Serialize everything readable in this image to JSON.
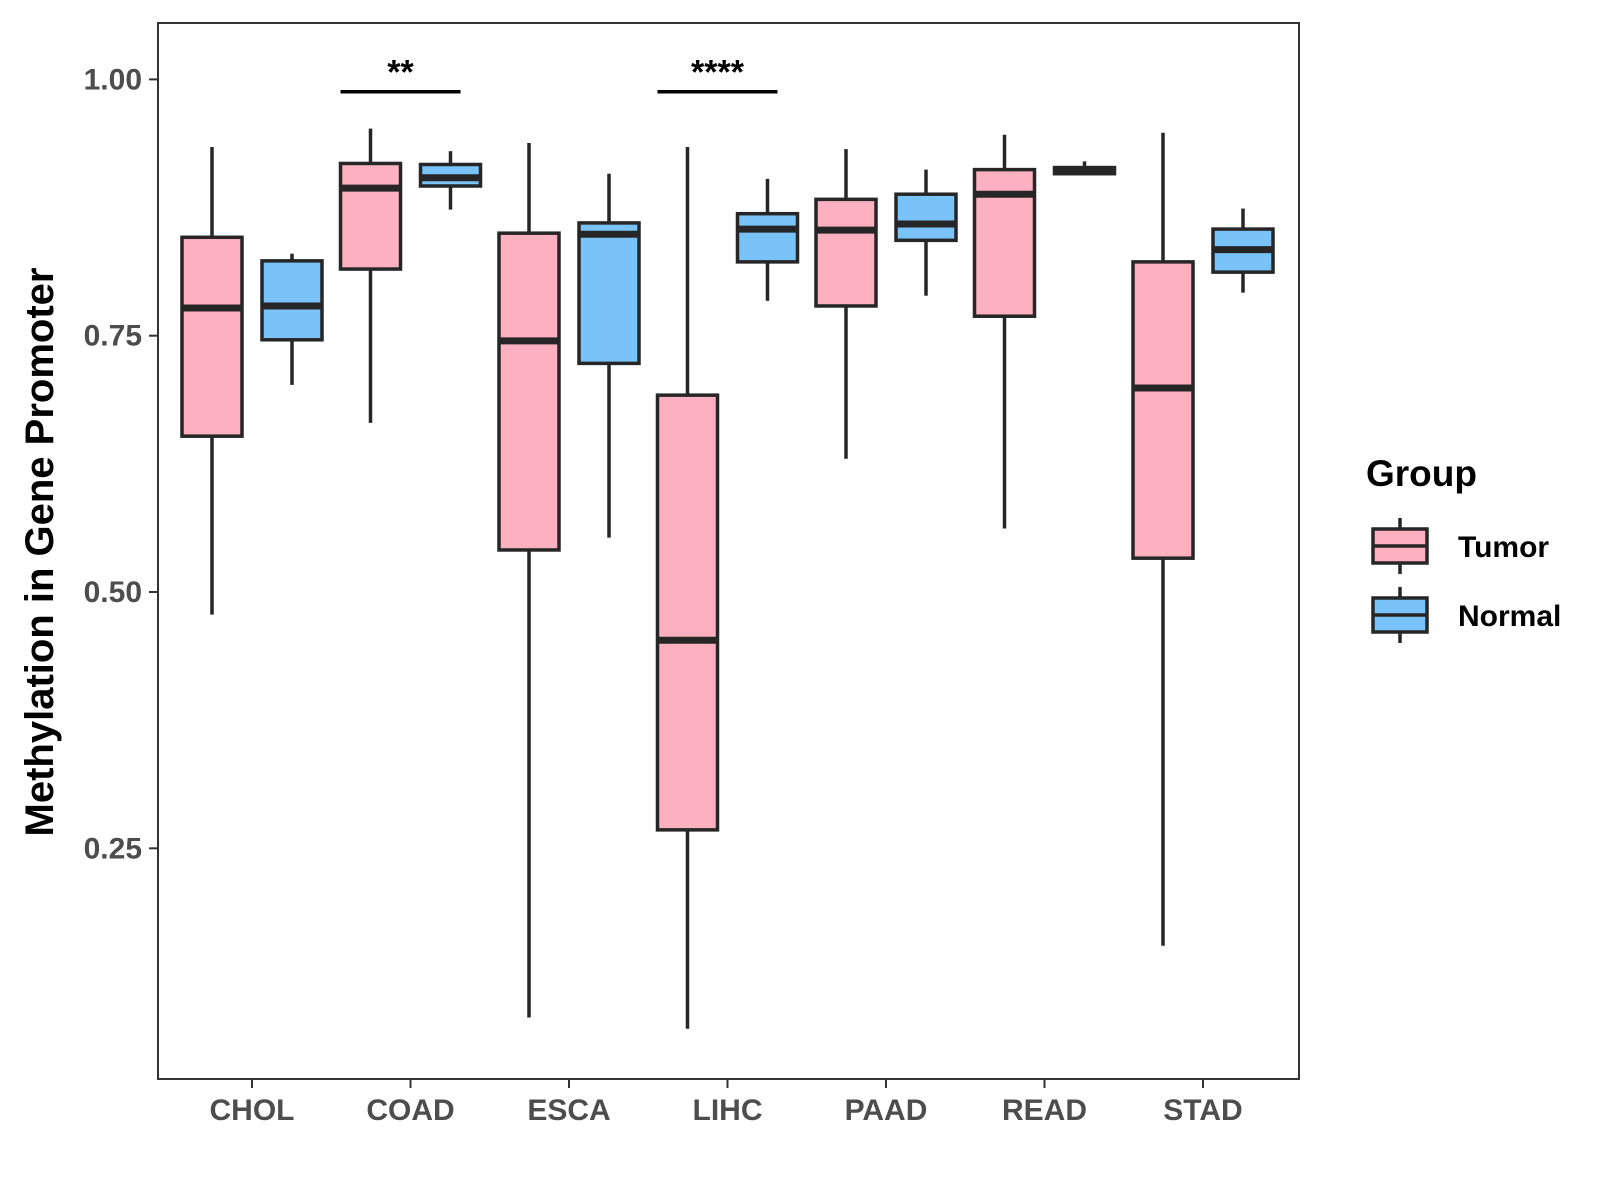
{
  "chart_data": {
    "type": "boxplot",
    "ylabel": "Methylation in Gene Promoter",
    "xlabel": "",
    "ylim": [
      0.025,
      1.055
    ],
    "yticks": [
      {
        "value": 0.25,
        "label": "0.25"
      },
      {
        "value": 0.5,
        "label": "0.50"
      },
      {
        "value": 0.75,
        "label": "0.75"
      },
      {
        "value": 1.0,
        "label": "1.00"
      }
    ],
    "categories": [
      "CHOL",
      "COAD",
      "ESCA",
      "LIHC",
      "PAAD",
      "READ",
      "STAD"
    ],
    "legend": {
      "title": "Group",
      "position": "right",
      "entries": [
        {
          "name": "Tumor",
          "color": "#FDB0C0"
        },
        {
          "name": "Normal",
          "color": "#7AC3F9"
        }
      ]
    },
    "series": [
      {
        "name": "Tumor",
        "color": "#FDB0C0",
        "boxes": [
          {
            "min": 0.478,
            "q1": 0.652,
            "median": 0.777,
            "q3": 0.846,
            "max": 0.934
          },
          {
            "min": 0.665,
            "q1": 0.815,
            "median": 0.894,
            "q3": 0.918,
            "max": 0.952
          },
          {
            "min": 0.085,
            "q1": 0.541,
            "median": 0.745,
            "q3": 0.85,
            "max": 0.938
          },
          {
            "min": 0.074,
            "q1": 0.268,
            "median": 0.453,
            "q3": 0.692,
            "max": 0.934
          },
          {
            "min": 0.63,
            "q1": 0.779,
            "median": 0.853,
            "q3": 0.883,
            "max": 0.932
          },
          {
            "min": 0.562,
            "q1": 0.769,
            "median": 0.888,
            "q3": 0.912,
            "max": 0.946
          },
          {
            "min": 0.155,
            "q1": 0.533,
            "median": 0.699,
            "q3": 0.822,
            "max": 0.948
          }
        ]
      },
      {
        "name": "Normal",
        "color": "#7AC3F9",
        "boxes": [
          {
            "min": 0.702,
            "q1": 0.746,
            "median": 0.779,
            "q3": 0.823,
            "max": 0.83
          },
          {
            "min": 0.873,
            "q1": 0.896,
            "median": 0.904,
            "q3": 0.917,
            "max": 0.93
          },
          {
            "min": 0.553,
            "q1": 0.723,
            "median": 0.849,
            "q3": 0.86,
            "max": 0.908
          },
          {
            "min": 0.784,
            "q1": 0.822,
            "median": 0.854,
            "q3": 0.869,
            "max": 0.903
          },
          {
            "min": 0.789,
            "q1": 0.843,
            "median": 0.859,
            "q3": 0.888,
            "max": 0.912
          },
          {
            "min": 0.907,
            "q1": 0.908,
            "median": 0.911,
            "q3": 0.914,
            "max": 0.92
          },
          {
            "min": 0.792,
            "q1": 0.812,
            "median": 0.834,
            "q3": 0.854,
            "max": 0.874
          }
        ]
      }
    ],
    "significance": [
      {
        "category": "COAD",
        "label": "**",
        "y": 0.988
      },
      {
        "category": "LIHC",
        "label": "****",
        "y": 0.988
      }
    ]
  }
}
